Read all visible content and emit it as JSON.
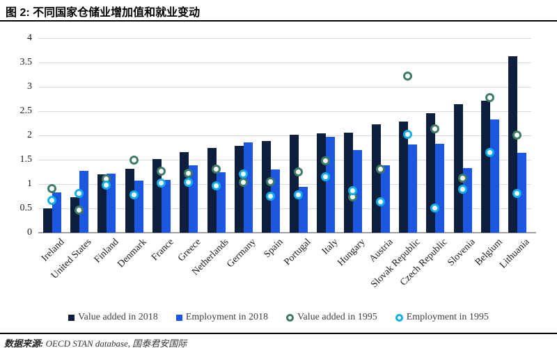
{
  "header": {
    "title": "图 2:  不同国家仓储业增加值和就业变动"
  },
  "chart_data": {
    "type": "bar",
    "title": "不同国家仓储业增加值和就业变动",
    "categories": [
      "Ireland",
      "United States",
      "Finland",
      "Denmark",
      "France",
      "Greece",
      "Netherlands",
      "Germany",
      "Spain",
      "Portugal",
      "Italy",
      "Hungary",
      "Austria",
      "Slovak Republic",
      "Czech Republic",
      "Slovenia",
      "Belgium",
      "Lithuania"
    ],
    "series": [
      {
        "name": "Value added in 2018",
        "render": "bar",
        "color": "#0E1F3D",
        "values": [
          0.5,
          0.73,
          1.2,
          1.31,
          1.52,
          1.66,
          1.75,
          1.79,
          1.89,
          2.02,
          2.05,
          2.06,
          2.23,
          2.28,
          2.46,
          2.65,
          2.72,
          3.63
        ]
      },
      {
        "name": "Employment in 2018",
        "render": "bar",
        "color": "#1B57E0",
        "values": [
          0.83,
          1.27,
          1.22,
          1.07,
          1.09,
          1.39,
          1.24,
          1.86,
          1.3,
          0.94,
          1.97,
          1.7,
          1.38,
          1.82,
          1.83,
          1.33,
          2.33,
          1.65
        ]
      },
      {
        "name": "Value added in 1995",
        "render": "scatter",
        "color": "#3E7C63",
        "values": [
          0.92,
          0.47,
          1.12,
          1.5,
          1.27,
          1.23,
          1.32,
          1.05,
          1.06,
          1.26,
          1.49,
          0.74,
          1.32,
          3.23,
          2.14,
          1.13,
          2.78,
          2.01
        ]
      },
      {
        "name": "Employment in 1995",
        "render": "scatter",
        "color": "#14AFEA",
        "values": [
          0.67,
          0.81,
          0.98,
          0.79,
          1.03,
          1.05,
          0.97,
          1.22,
          0.76,
          0.79,
          1.16,
          0.87,
          0.65,
          2.03,
          0.51,
          0.9,
          1.66,
          0.82
        ]
      }
    ],
    "ylim": [
      0,
      4
    ],
    "yticks": [
      0,
      0.5,
      1,
      1.5,
      2,
      2.5,
      3,
      3.5,
      4
    ],
    "grid": true,
    "legend_position": "bottom",
    "gridline_color": "#D9D9D9",
    "axis_color": "#A0A0A0"
  },
  "footer": {
    "source_label": "数据来源:",
    "source_text": " OECD STAN database, 国泰君安国际"
  }
}
